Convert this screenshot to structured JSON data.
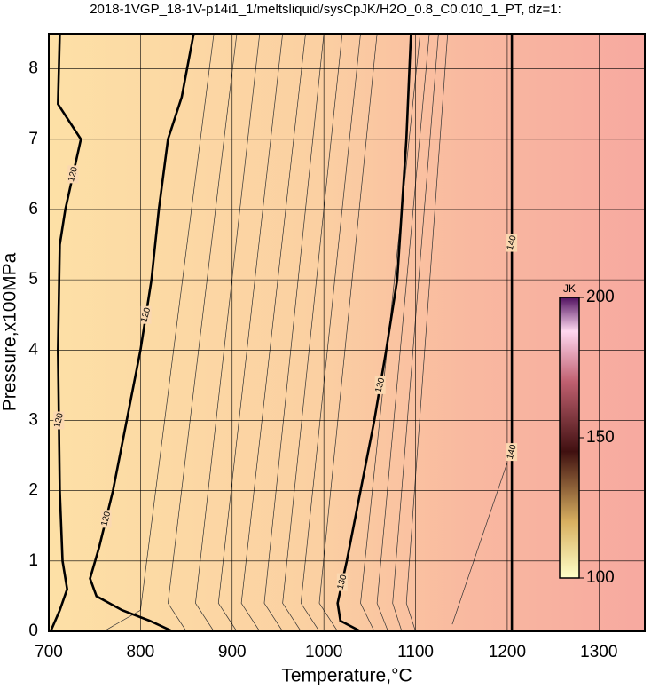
{
  "chart_data": {
    "type": "contour",
    "title": "2018-1VGP_18-1V-p14i1_1/meltsliquid/sysCpJK/H2O_0.8_C0.010_1_PT, dz=1:",
    "x_label": "Temperature,°C",
    "y_label": "Pressure,x100MPa",
    "xlim": [
      700,
      1350
    ],
    "ylim": [
      0,
      8.5
    ],
    "xticks": [
      700,
      800,
      900,
      1000,
      1100,
      1200,
      1300
    ],
    "yticks": [
      0,
      1,
      2,
      3,
      4,
      5,
      6,
      7,
      8
    ],
    "grid": true,
    "contours": [
      {
        "level": 120,
        "x": [
          712,
          710,
          735,
          718,
          712,
          710,
          712,
          715,
          720,
          712,
          702
        ],
        "y": [
          8.5,
          7.5,
          7.0,
          6.0,
          5.5,
          4,
          2,
          1,
          0.6,
          0.3,
          0
        ]
      },
      {
        "level": 120,
        "x": [
          858,
          845,
          830,
          820,
          812,
          800,
          785,
          770,
          755,
          745,
          752,
          780,
          810,
          835
        ],
        "y": [
          8.5,
          7.6,
          7.0,
          6.0,
          5,
          4,
          3,
          2,
          1.2,
          0.75,
          0.5,
          0.3,
          0.15,
          0
        ]
      },
      {
        "level": 130,
        "x": [
          1095,
          1090,
          1085,
          1080,
          1068,
          1055,
          1040,
          1025,
          1015,
          1018,
          1040
        ],
        "y": [
          8.5,
          7,
          6,
          5,
          4,
          3,
          2,
          1,
          0.4,
          0.15,
          0
        ]
      },
      {
        "level": 140,
        "x": [
          1205,
          1205,
          1205
        ],
        "y": [
          8.5,
          4,
          0
        ]
      }
    ],
    "thin_contours": [
      {
        "x": [
          760,
          800,
          880
        ],
        "y": [
          0,
          0.3,
          8.5
        ]
      },
      {
        "x": [
          850,
          830,
          905
        ],
        "y": [
          0,
          0.4,
          8.5
        ]
      },
      {
        "x": [
          880,
          860,
          930
        ],
        "y": [
          0,
          0.4,
          8.5
        ]
      },
      {
        "x": [
          905,
          885,
          955
        ],
        "y": [
          0,
          0.4,
          8.5
        ]
      },
      {
        "x": [
          930,
          910,
          980
        ],
        "y": [
          0,
          0.4,
          8.5
        ]
      },
      {
        "x": [
          955,
          935,
          1000
        ],
        "y": [
          0,
          0.4,
          8.5
        ]
      },
      {
        "x": [
          975,
          955,
          1020
        ],
        "y": [
          0,
          0.4,
          8.5
        ]
      },
      {
        "x": [
          995,
          975,
          1040
        ],
        "y": [
          0,
          0.4,
          8.5
        ]
      },
      {
        "x": [
          1015,
          995,
          1058
        ],
        "y": [
          0,
          0.4,
          8.5
        ]
      },
      {
        "x": [
          1055,
          1040,
          1105
        ],
        "y": [
          0,
          0.4,
          8.5
        ]
      },
      {
        "x": [
          1070,
          1058,
          1115
        ],
        "y": [
          0,
          0.4,
          8.5
        ]
      },
      {
        "x": [
          1085,
          1075,
          1125
        ],
        "y": [
          0,
          0.4,
          8.5
        ]
      },
      {
        "x": [
          1100,
          1090,
          1135
        ],
        "y": [
          0,
          0.4,
          8.5
        ]
      },
      {
        "x": [
          1140,
          1200
        ],
        "y": [
          0.1,
          2.4
        ]
      }
    ],
    "colorbar": {
      "label": "JK",
      "lim": [
        100,
        200
      ],
      "ticks": [
        100,
        150,
        200
      ]
    }
  }
}
